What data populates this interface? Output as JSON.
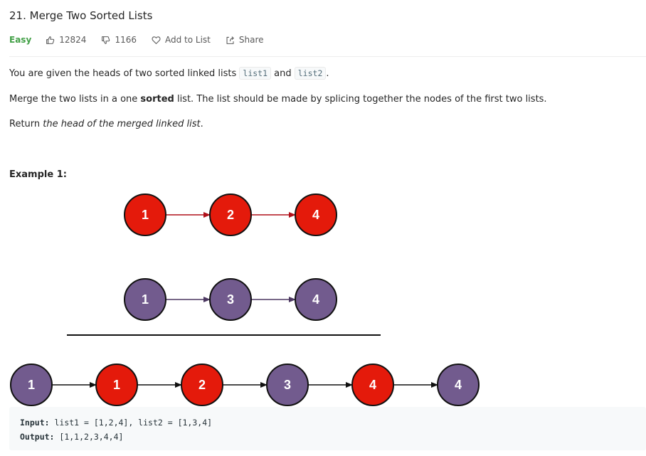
{
  "problem": {
    "title": "21. Merge Two Sorted Lists",
    "difficulty": "Easy",
    "likes": "12824",
    "dislikes": "1166",
    "add_to_list": "Add to List",
    "share": "Share"
  },
  "description": {
    "p1_before": "You are given the heads of two sorted linked lists ",
    "p1_code1": "list1",
    "p1_middle": " and ",
    "p1_code2": "list2",
    "p1_after": ".",
    "p2_before": "Merge the two lists in a one ",
    "p2_bold": "sorted",
    "p2_after": " list. The list should be made by splicing together the nodes of the first two lists.",
    "p3_before": "Return ",
    "p3_italic": "the head of the merged linked list",
    "p3_after": "."
  },
  "example": {
    "title": "Example 1:",
    "list1": [
      "1",
      "2",
      "4"
    ],
    "list2": [
      "1",
      "3",
      "4"
    ],
    "merged": [
      "1",
      "1",
      "2",
      "3",
      "4",
      "4"
    ],
    "merged_colors": [
      "purple",
      "red",
      "red",
      "purple",
      "red",
      "purple"
    ],
    "input_label": "Input:",
    "input_value": "list1 = [1,2,4], list2 = [1,3,4]",
    "output_label": "Output:",
    "output_value": "[1,1,2,3,4,4]"
  },
  "colors": {
    "red": "#e41a0b",
    "purple": "#725b8e",
    "easy": "#43a047",
    "red_arrow": "#b0101a",
    "purple_arrow": "#4b3760"
  },
  "icons": {
    "like": "thumbs-up-icon",
    "dislike": "thumbs-down-icon",
    "add_to_list": "heart-icon",
    "share": "share-icon"
  }
}
